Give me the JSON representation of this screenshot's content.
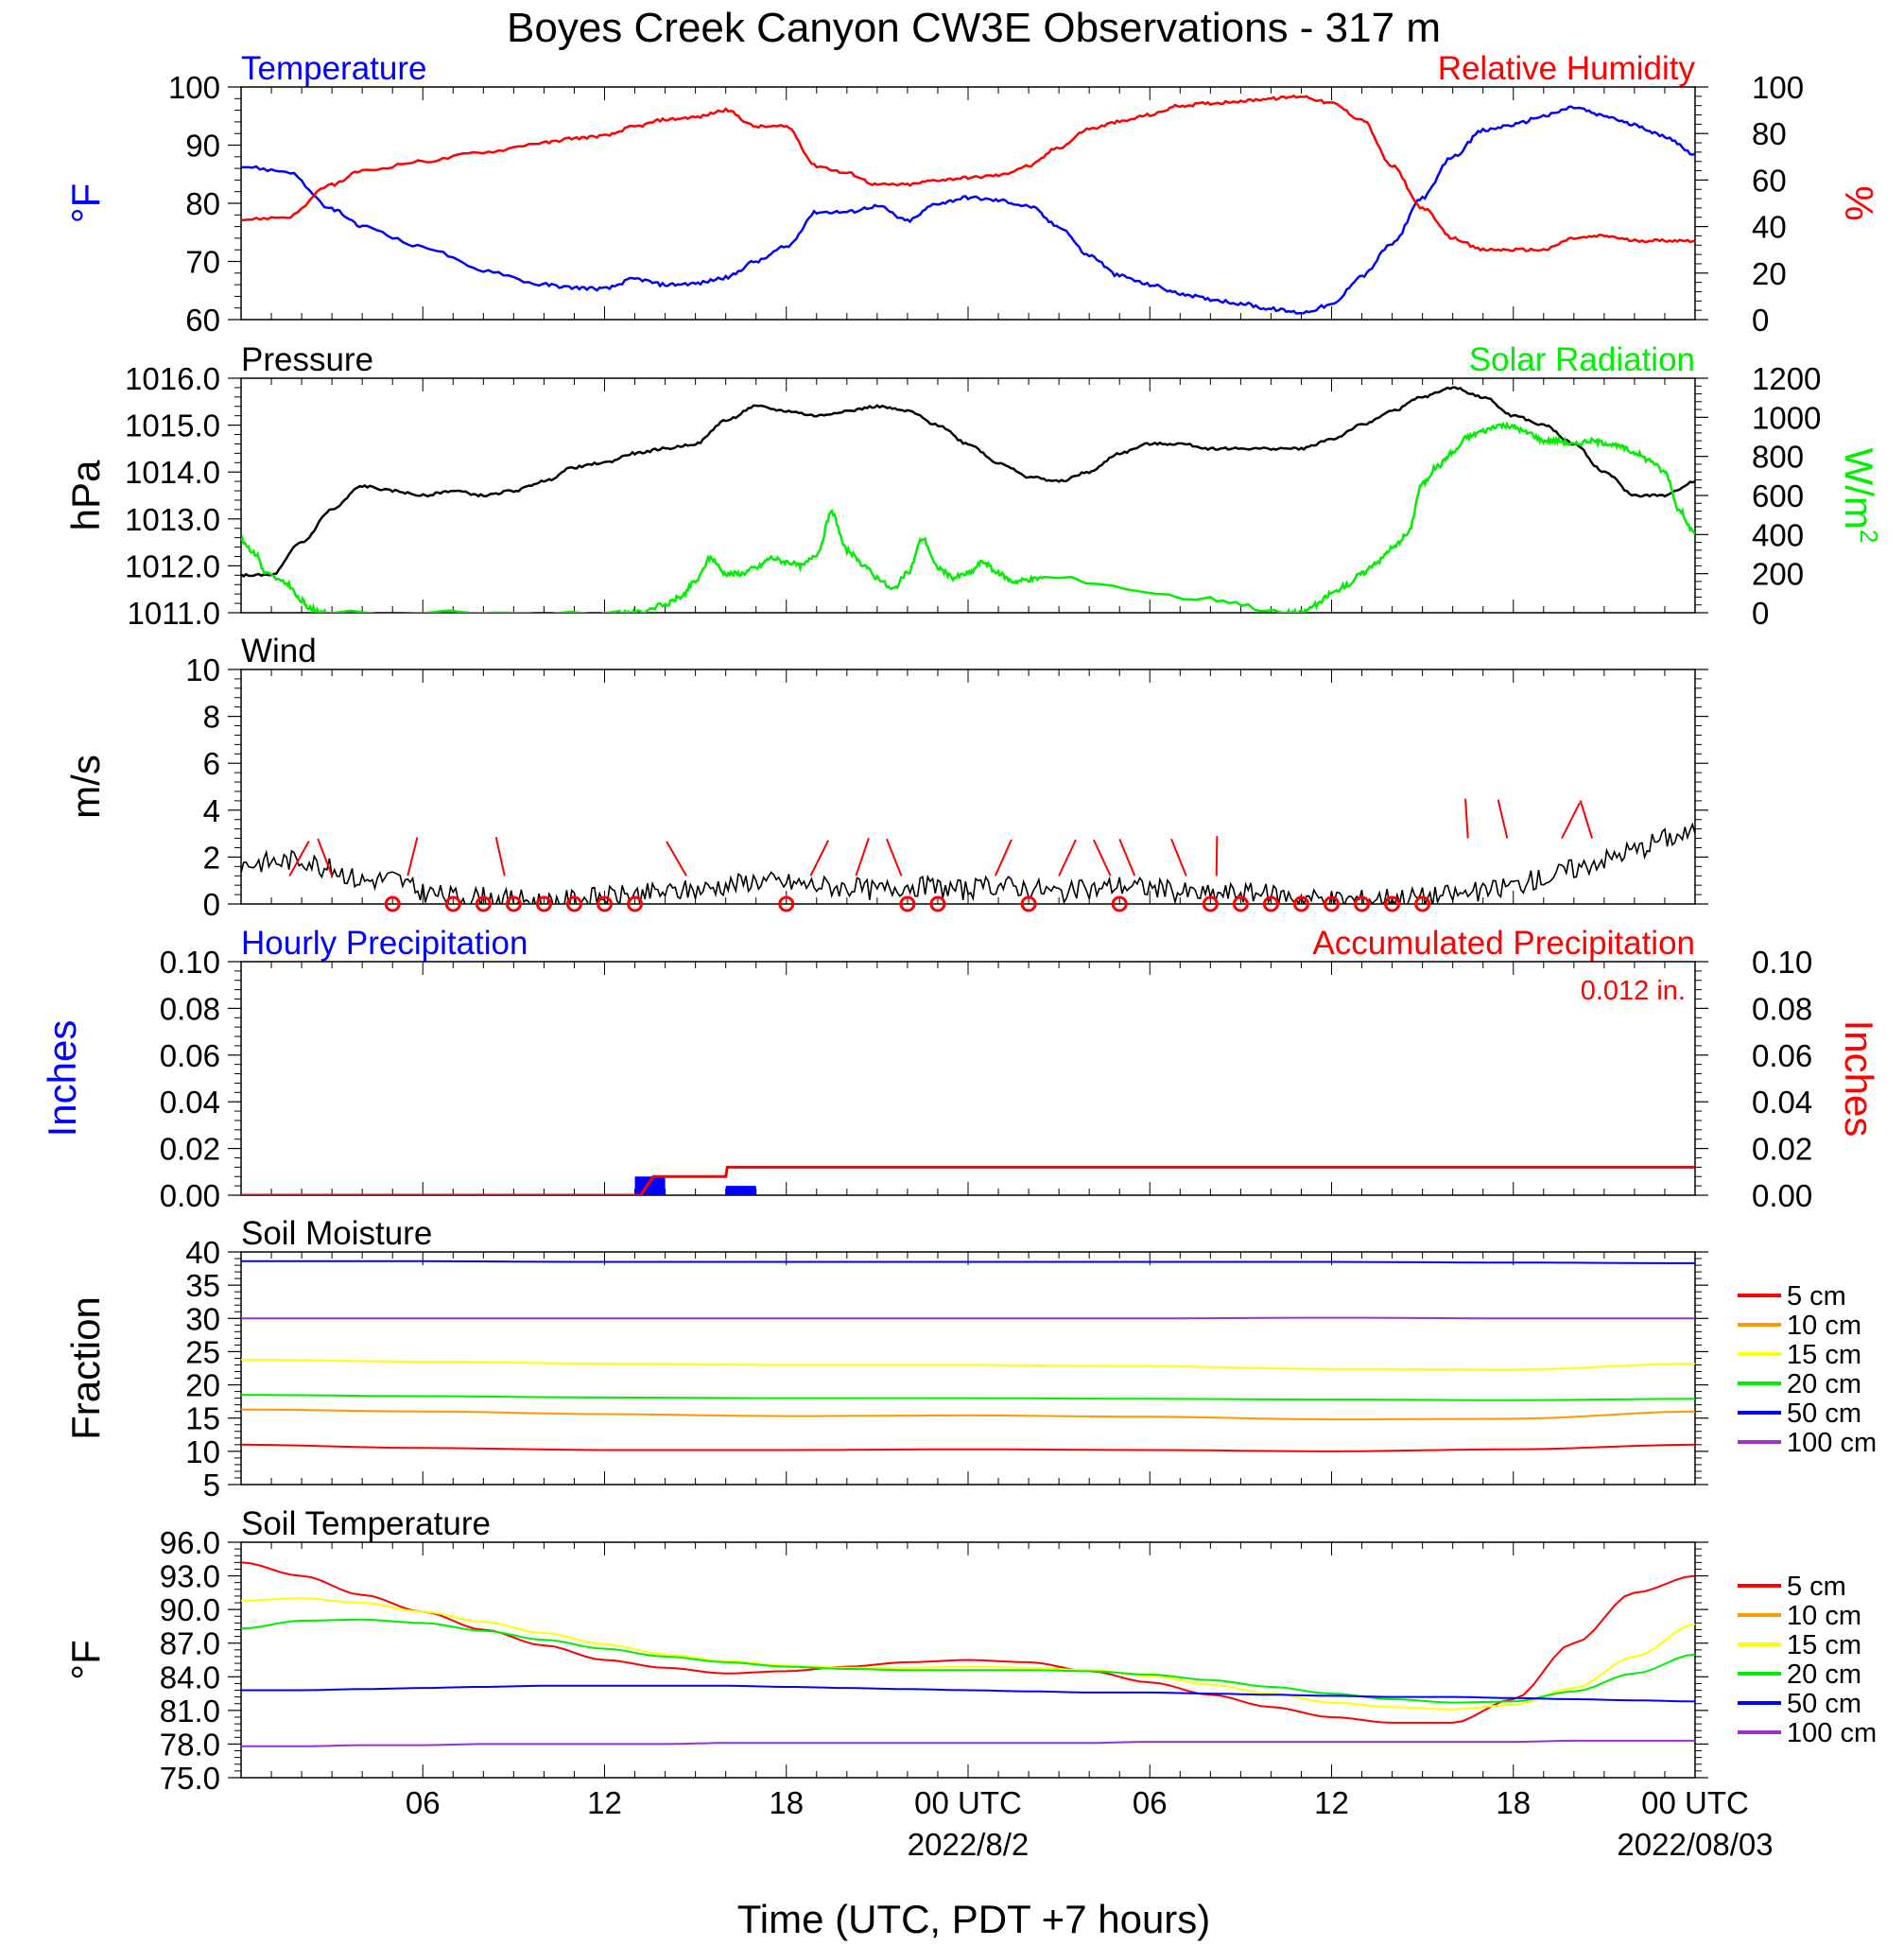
{
  "title": "Boyes Creek Canyon CW3E Observations - 317 m",
  "xlabel": "Time (UTC, PDT +7 hours)",
  "x_ticks": [
    "06",
    "12",
    "18",
    "00 UTC",
    "06",
    "12",
    "18",
    "00 UTC"
  ],
  "date_labels": [
    "2022/8/2",
    "2022/08/03"
  ],
  "colors": {
    "blue": "#0000ff",
    "red": "#ff0000",
    "green": "#00ee00",
    "black": "#000000",
    "orange": "#ff9900",
    "yellow": "#ffff00",
    "purple": "#9933cc"
  },
  "chart_data": [
    {
      "type": "line",
      "left_label": "Temperature",
      "right_label": "Relative Humidity",
      "ylabel_left": "°F",
      "ylabel_right": "%",
      "ylim_left": [
        60,
        100
      ],
      "ylim_right": [
        0,
        100
      ],
      "yticks_left": [
        "60",
        "70",
        "80",
        "90",
        "100"
      ],
      "yticks_right": [
        "0",
        "20",
        "40",
        "60",
        "80",
        "100"
      ],
      "x_hours": [
        0,
        1.5,
        3,
        4,
        6,
        8,
        10,
        11,
        12,
        13,
        14,
        15,
        16,
        17,
        18,
        19,
        20,
        21,
        22,
        23,
        24,
        25,
        26,
        27,
        28,
        29,
        30,
        31,
        32,
        33,
        34,
        35,
        36,
        37,
        38,
        39,
        40,
        41,
        42,
        43,
        44,
        45,
        46,
        47,
        48
      ],
      "series": [
        {
          "name": "Temperature",
          "axis": "left",
          "color": "blue",
          "values": [
            86.3,
            85.5,
            79.0,
            76.0,
            72.5,
            68.5,
            66.0,
            65.5,
            65.3,
            67.0,
            66.0,
            66.2,
            67.2,
            70.0,
            72.5,
            78.5,
            78.5,
            79.5,
            77.0,
            80.0,
            81.0,
            80.5,
            79.5,
            76.0,
            71.0,
            67.5,
            66.0,
            64.5,
            63.5,
            62.8,
            61.8,
            61.2,
            62.5,
            67.5,
            73.0,
            81.0,
            88.0,
            92.5,
            93.5,
            95.0,
            96.5,
            95.0,
            93.5,
            91.5,
            88.5
          ]
        },
        {
          "name": "Relative Humidity",
          "axis": "right",
          "color": "red",
          "values": [
            43.0,
            44.0,
            58.0,
            64.0,
            68.0,
            72.0,
            76.0,
            78.0,
            79.0,
            83.0,
            86.0,
            87.0,
            90.0,
            83.0,
            83.0,
            66.0,
            63.0,
            58.0,
            58.0,
            60.0,
            61.0,
            62.0,
            66.0,
            74.0,
            82.0,
            85.0,
            88.0,
            92.0,
            93.0,
            94.0,
            95.0,
            96.0,
            93.0,
            86.0,
            66.0,
            48.0,
            35.0,
            30.0,
            30.0,
            30.0,
            35.0,
            36.0,
            34.0,
            34.0,
            34.0
          ]
        }
      ]
    },
    {
      "type": "line",
      "left_label": "Pressure",
      "right_label": "Solar Radiation",
      "ylabel_left": "hPa",
      "ylabel_right": "W/m",
      "ylabel_right_sup": "2",
      "ylim_left": [
        1011,
        1016
      ],
      "ylim_right": [
        0,
        1200
      ],
      "yticks_left": [
        "1011.0",
        "1012.0",
        "1013.0",
        "1014.0",
        "1015.0",
        "1016.0"
      ],
      "yticks_right": [
        "0",
        "200",
        "400",
        "600",
        "800",
        "1000",
        "1200"
      ],
      "series": [
        {
          "name": "Pressure",
          "axis": "left",
          "color": "black",
          "x_hours": [
            0,
            1,
            2,
            3,
            4,
            5,
            6,
            7,
            8,
            9,
            10,
            11,
            12,
            13,
            14,
            15,
            16,
            17,
            18,
            19,
            20,
            21,
            22,
            23,
            24,
            25,
            26,
            27,
            28,
            29,
            30,
            31,
            32,
            33,
            34,
            35,
            36,
            37,
            38,
            39,
            40,
            41,
            42,
            43,
            44,
            45,
            46,
            47,
            48
          ],
          "values": [
            1011.8,
            1011.8,
            1012.5,
            1013.2,
            1013.7,
            1013.6,
            1013.5,
            1013.6,
            1013.5,
            1013.6,
            1013.8,
            1014.1,
            1014.2,
            1014.4,
            1014.5,
            1014.6,
            1015.1,
            1015.4,
            1015.3,
            1015.2,
            1015.3,
            1015.4,
            1015.3,
            1015.0,
            1014.6,
            1014.2,
            1013.9,
            1013.8,
            1014.0,
            1014.4,
            1014.6,
            1014.6,
            1014.5,
            1014.5,
            1014.5,
            1014.5,
            1014.7,
            1015.0,
            1015.3,
            1015.6,
            1015.8,
            1015.6,
            1015.2,
            1015.0,
            1014.6,
            1014.0,
            1013.5,
            1013.5,
            1013.8
          ]
        },
        {
          "name": "Solar Radiation",
          "axis": "right",
          "color": "green",
          "x_hours": [
            0,
            0.5,
            0.8,
            1.5,
            2,
            2.3,
            2.8,
            12.5,
            13,
            14,
            14.5,
            15,
            15.5,
            16,
            16.5,
            17,
            17.5,
            18,
            18.5,
            19,
            19.5,
            20,
            20.5,
            21,
            21.5,
            22,
            22.5,
            23,
            23.5,
            24,
            24.5,
            25,
            25.5,
            26,
            26.5,
            32,
            34.5,
            35,
            35.5,
            36,
            36.5,
            37,
            37.5,
            38,
            38.5,
            39,
            39.5,
            40,
            40.5,
            41,
            41.5,
            42,
            42.5,
            43,
            43.5,
            44,
            44.5,
            45,
            45.5,
            46,
            46.5,
            47,
            47.5,
            48
          ],
          "values": [
            370,
            300,
            200,
            150,
            60,
            20,
            0,
            0,
            0,
            40,
            80,
            160,
            280,
            200,
            200,
            230,
            280,
            260,
            240,
            300,
            510,
            320,
            250,
            180,
            120,
            200,
            380,
            230,
            180,
            200,
            260,
            200,
            160,
            170,
            180,
            70,
            0,
            0,
            40,
            100,
            140,
            200,
            260,
            330,
            400,
            660,
            750,
            820,
            900,
            930,
            960,
            950,
            920,
            880,
            880,
            860,
            880,
            870,
            850,
            820,
            780,
            720,
            520,
            400
          ]
        }
      ]
    },
    {
      "type": "line",
      "left_label": "Wind",
      "ylabel_left": "m/s",
      "ylim_left": [
        0,
        10
      ],
      "yticks_left": [
        "0",
        "2",
        "4",
        "6",
        "8",
        "10"
      ],
      "series": [
        {
          "name": "Wind",
          "color": "black",
          "x_hours": [
            0,
            1,
            2,
            3,
            4,
            5,
            6,
            7,
            8,
            9,
            10,
            11,
            12,
            13,
            14,
            15,
            16,
            17,
            18,
            19,
            20,
            21,
            22,
            23,
            24,
            25,
            26,
            27,
            28,
            29,
            30,
            31,
            32,
            33,
            34,
            35,
            36,
            37,
            38,
            39,
            40,
            41,
            42,
            43,
            44,
            45,
            46,
            47,
            48
          ],
          "values": [
            1.7,
            1.8,
            1.9,
            1.5,
            1.0,
            1.1,
            0.5,
            0.3,
            0.3,
            0.2,
            0.1,
            0.2,
            0.3,
            0.4,
            0.5,
            0.6,
            0.8,
            1.0,
            0.9,
            0.8,
            0.7,
            0.6,
            0.8,
            0.7,
            0.6,
            0.8,
            0.7,
            0.5,
            0.6,
            0.8,
            0.7,
            0.5,
            0.4,
            0.5,
            0.4,
            0.3,
            0.2,
            0.2,
            0.3,
            0.3,
            0.4,
            0.5,
            0.8,
            1.1,
            1.5,
            1.9,
            2.3,
            2.8,
            3.0
          ]
        }
      ],
      "calm_hours": [
        5,
        7,
        8,
        9,
        10,
        11,
        12,
        13,
        18,
        22,
        23,
        26,
        29,
        32,
        33,
        34,
        35,
        36,
        37,
        38,
        39
      ]
    },
    {
      "type": "bar",
      "left_label": "Hourly Precipitation",
      "right_label": "Accumulated Precipitation",
      "annotation": "0.012 in.",
      "ylabel_left": "Inches",
      "ylabel_right": "Inches",
      "ylim_left": [
        0,
        0.1
      ],
      "ylim_right": [
        0,
        0.1
      ],
      "yticks_left": [
        "0.00",
        "0.02",
        "0.04",
        "0.06",
        "0.08",
        "0.10"
      ],
      "yticks_right": [
        "0.00",
        "0.02",
        "0.04",
        "0.06",
        "0.08",
        "0.10"
      ],
      "bars": [
        {
          "hour": 13,
          "value": 0.008
        },
        {
          "hour": 16,
          "value": 0.004
        }
      ],
      "series": [
        {
          "name": "Accumulated Precipitation",
          "color": "red",
          "x_hours": [
            0,
            13.2,
            13.5,
            13.6,
            16.0,
            16.05,
            48
          ],
          "values": [
            0,
            0,
            0.006,
            0.008,
            0.008,
            0.012,
            0.012
          ]
        }
      ]
    },
    {
      "type": "line",
      "left_label": "Soil Moisture",
      "ylabel_left": "Fraction",
      "ylim_left": [
        5,
        40
      ],
      "yticks_left": [
        "5",
        "10",
        "15",
        "20",
        "25",
        "30",
        "35",
        "40"
      ],
      "x_hours": [
        0,
        6,
        12,
        18,
        24,
        30,
        36,
        42,
        48
      ],
      "series": [
        {
          "name": "5 cm",
          "color": "red",
          "values": [
            11.0,
            10.5,
            10.2,
            10.2,
            10.3,
            10.2,
            10.0,
            10.3,
            11.0
          ]
        },
        {
          "name": "10 cm",
          "color": "orange",
          "values": [
            16.3,
            16.0,
            15.6,
            15.3,
            15.4,
            15.2,
            14.8,
            14.9,
            16.0
          ]
        },
        {
          "name": "15 cm",
          "color": "yellow",
          "values": [
            23.8,
            23.5,
            23.2,
            23.0,
            23.0,
            22.8,
            22.4,
            22.3,
            23.2
          ]
        },
        {
          "name": "20 cm",
          "color": "green",
          "values": [
            18.5,
            18.3,
            18.1,
            18.0,
            18.0,
            17.9,
            17.8,
            17.7,
            17.9
          ]
        },
        {
          "name": "50 cm",
          "color": "blue",
          "values": [
            38.6,
            38.6,
            38.5,
            38.5,
            38.5,
            38.5,
            38.5,
            38.4,
            38.3
          ]
        },
        {
          "name": "100 cm",
          "color": "purple",
          "values": [
            30.0,
            30.0,
            30.0,
            30.0,
            30.0,
            30.0,
            30.1,
            30.0,
            30.0
          ]
        }
      ]
    },
    {
      "type": "line",
      "left_label": "Soil Temperature",
      "ylabel_left": "°F",
      "ylim_left": [
        75,
        96
      ],
      "yticks_left": [
        "75.0",
        "78.0",
        "81.0",
        "84.0",
        "87.0",
        "90.0",
        "93.0",
        "96.0"
      ],
      "x_hours": [
        0,
        2,
        4,
        6,
        8,
        10,
        12,
        14,
        16,
        18,
        20,
        22,
        24,
        26,
        28,
        30,
        32,
        34,
        36,
        38,
        40,
        42,
        44,
        46,
        48
      ],
      "series": [
        {
          "name": "5 cm",
          "color": "red",
          "values": [
            94.2,
            93.0,
            91.3,
            89.8,
            88.2,
            86.8,
            85.5,
            84.8,
            84.3,
            84.5,
            84.9,
            85.3,
            85.5,
            85.3,
            84.5,
            83.5,
            82.4,
            81.3,
            80.4,
            79.9,
            79.9,
            82.0,
            87.0,
            91.5,
            93.0
          ]
        },
        {
          "name": "10 cm",
          "color": "orange",
          "values": []
        },
        {
          "name": "15 cm",
          "color": "yellow",
          "values": [
            90.8,
            91.0,
            90.6,
            89.8,
            88.9,
            87.9,
            86.9,
            86.0,
            85.4,
            85.0,
            84.8,
            84.8,
            84.9,
            84.8,
            84.6,
            84.1,
            83.3,
            82.5,
            81.7,
            81.3,
            81.1,
            81.5,
            83.0,
            85.8,
            88.7
          ]
        },
        {
          "name": "20 cm",
          "color": "green",
          "values": [
            88.3,
            89.0,
            89.1,
            88.8,
            88.1,
            87.3,
            86.5,
            85.8,
            85.3,
            84.9,
            84.7,
            84.6,
            84.6,
            84.6,
            84.5,
            84.2,
            83.7,
            83.1,
            82.5,
            82.0,
            81.7,
            81.8,
            82.7,
            84.3,
            86.0
          ]
        },
        {
          "name": "50 cm",
          "color": "blue",
          "values": [
            82.8,
            82.8,
            82.9,
            83.0,
            83.1,
            83.2,
            83.2,
            83.2,
            83.2,
            83.1,
            83.0,
            82.9,
            82.8,
            82.7,
            82.6,
            82.6,
            82.5,
            82.4,
            82.3,
            82.2,
            82.2,
            82.1,
            82.0,
            81.9,
            81.8
          ]
        },
        {
          "name": "100 cm",
          "color": "purple",
          "values": [
            77.8,
            77.8,
            77.9,
            77.9,
            78.0,
            78.0,
            78.0,
            78.0,
            78.1,
            78.1,
            78.1,
            78.1,
            78.1,
            78.1,
            78.1,
            78.2,
            78.2,
            78.2,
            78.2,
            78.2,
            78.2,
            78.2,
            78.3,
            78.3,
            78.3
          ]
        }
      ]
    }
  ]
}
